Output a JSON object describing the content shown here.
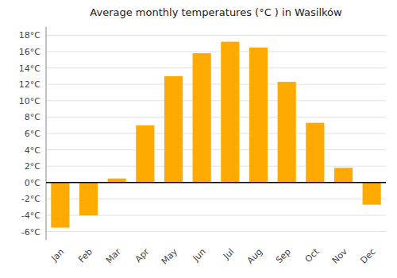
{
  "chart_data": {
    "type": "bar",
    "title": "Average monthly temperatures (°C ) in Wasilków",
    "categories": [
      "Jan",
      "Feb",
      "Mar",
      "Apr",
      "May",
      "Jun",
      "Jul",
      "Aug",
      "Sep",
      "Oct",
      "Nov",
      "Dec"
    ],
    "values": [
      -5.5,
      -4.0,
      0.5,
      7.0,
      13.0,
      15.8,
      17.2,
      16.5,
      12.3,
      7.3,
      1.8,
      -2.7
    ],
    "color": "#FFAA00",
    "ylim": [
      -7,
      19
    ],
    "yticks": [
      {
        "value": -6,
        "label": "-6°C"
      },
      {
        "value": -4,
        "label": "-4°C"
      },
      {
        "value": -2,
        "label": "-2°C"
      },
      {
        "value": 0,
        "label": "0°C"
      },
      {
        "value": 2,
        "label": "2°C"
      },
      {
        "value": 4,
        "label": "4°C"
      },
      {
        "value": 6,
        "label": "6°C"
      },
      {
        "value": 8,
        "label": "8°C"
      },
      {
        "value": 10,
        "label": "10°C"
      },
      {
        "value": 12,
        "label": "12°C"
      },
      {
        "value": 14,
        "label": "14°C"
      },
      {
        "value": 16,
        "label": "16°C"
      },
      {
        "value": 18,
        "label": "18°C"
      }
    ],
    "grid": true
  }
}
